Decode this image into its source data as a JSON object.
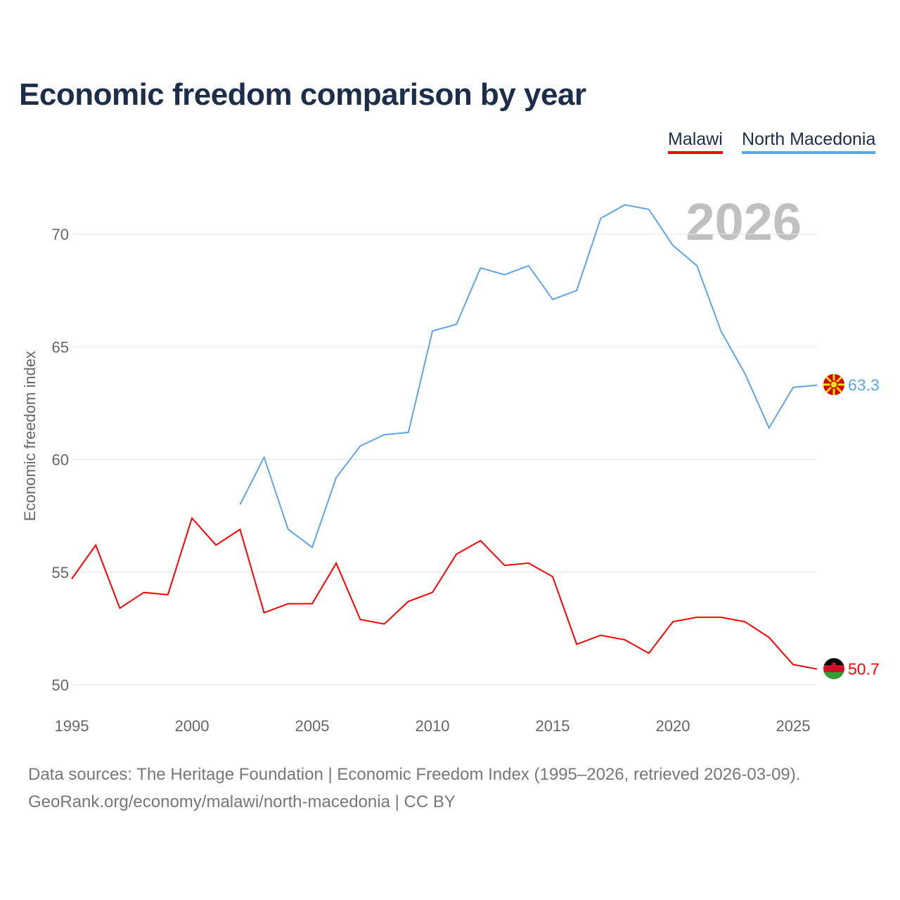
{
  "title": "Economic freedom comparison by year",
  "legend": [
    "Malawi",
    "North Macedonia"
  ],
  "year_watermark": "2026",
  "sources": [
    "Data sources: The Heritage Foundation | Economic Freedom Index (1995–2026, retrieved 2026-03-09).",
    "GeoRank.org/economy/malawi/north-macedonia | CC BY"
  ],
  "chart_data": {
    "type": "line",
    "title": "Economic freedom comparison by year",
    "xlabel": "",
    "ylabel": "Economic freedom index",
    "xlim": [
      1995,
      2026
    ],
    "ylim": [
      50,
      72
    ],
    "x_ticks": [
      1995,
      2000,
      2005,
      2010,
      2015,
      2020,
      2025
    ],
    "y_ticks": [
      50,
      55,
      60,
      65,
      70
    ],
    "grid": true,
    "legend_position": "top-right",
    "series": [
      {
        "name": "Malawi",
        "color": "#ff0000",
        "end_label": "50.7",
        "x": [
          1995,
          1996,
          1997,
          1998,
          1999,
          2000,
          2001,
          2002,
          2003,
          2004,
          2005,
          2006,
          2007,
          2008,
          2009,
          2010,
          2011,
          2012,
          2013,
          2014,
          2015,
          2016,
          2017,
          2018,
          2019,
          2020,
          2021,
          2022,
          2023,
          2024,
          2025,
          2026
        ],
        "values": [
          54.7,
          56.2,
          53.4,
          54.1,
          54.0,
          57.4,
          56.2,
          56.9,
          53.2,
          53.6,
          53.6,
          55.4,
          52.9,
          52.7,
          53.7,
          54.1,
          55.8,
          56.4,
          55.3,
          55.4,
          54.8,
          51.8,
          52.2,
          52.0,
          51.4,
          52.8,
          53.0,
          53.0,
          52.8,
          52.1,
          50.9,
          50.7
        ]
      },
      {
        "name": "North Macedonia",
        "color": "#5ea5e8",
        "end_label": "63.3",
        "x": [
          2002,
          2003,
          2004,
          2005,
          2006,
          2007,
          2008,
          2009,
          2010,
          2011,
          2012,
          2013,
          2014,
          2015,
          2016,
          2017,
          2018,
          2019,
          2020,
          2021,
          2022,
          2023,
          2024,
          2025,
          2026
        ],
        "values": [
          58.0,
          60.1,
          56.9,
          56.1,
          59.2,
          60.6,
          61.1,
          61.2,
          65.7,
          66.0,
          68.5,
          68.2,
          68.6,
          67.1,
          67.5,
          70.7,
          71.3,
          71.1,
          69.5,
          68.6,
          65.7,
          63.8,
          61.4,
          63.2,
          63.3
        ]
      }
    ]
  }
}
